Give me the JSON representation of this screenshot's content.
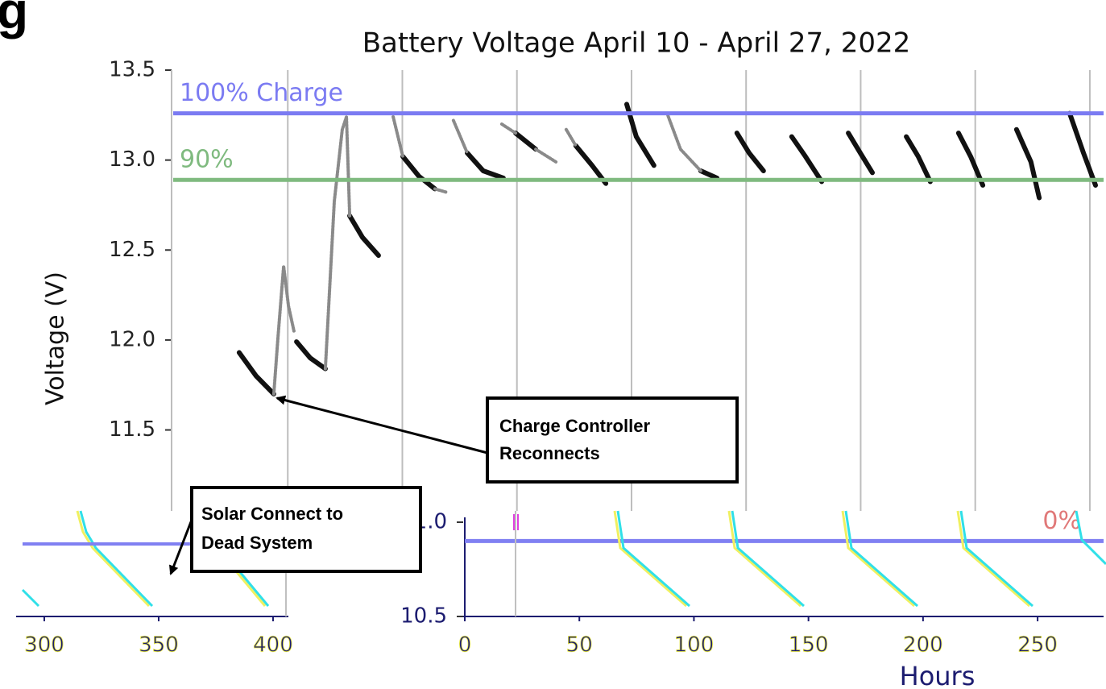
{
  "heading": "g",
  "chart_data": [
    {
      "type": "line",
      "title": "Battery Voltage April 10 - April 27, 2022",
      "ylabel": "Voltage (V)",
      "xlim": [
        0,
        406
      ],
      "xticks": [
        50,
        100,
        150,
        200,
        250,
        300,
        350,
        400
      ],
      "xtick_labels": false,
      "ylim": [
        11.05,
        13.5
      ],
      "yticks": [
        11.5,
        {
          "value": 12,
          "label": "12.0"
        },
        12.5,
        {
          "value": 13,
          "label": "13.0"
        },
        13.5
      ],
      "grid": true,
      "reference_lines": [
        {
          "label": "100% Charge",
          "value": 13.26,
          "color": "#7b7bf2"
        },
        {
          "label": "90%",
          "value": 12.89,
          "color": "#7fba7f"
        }
      ],
      "series": [
        {
          "color": "#111111",
          "x": [
            28.8,
            36.2,
            43.9,
            null,
            53.8,
            59.8,
            66.4,
            null,
            77.0,
            82.6,
            89.6,
            null,
            100.2,
            107.2,
            114.2,
            null,
            128.3,
            135.3,
            144.1,
            null,
            149.4,
            158.2,
            null,
            175.7,
            182.8,
            188.8,
            null,
            197.9,
            202.1,
            209.8,
            null,
            230.2,
            237.3,
            null,
            246.0,
            251.3,
            257.6,
            null,
            269.9,
            275.9,
            283.0,
            null,
            294.6,
            299.8,
            305.1,
            null,
            319.9,
            325.1,
            330.4,
            null,
            342.7,
            348.0,
            353.3,
            null,
            368.0,
            374.3,
            377.9,
            null,
            391.2,
            397.2,
            402.5
          ],
          "values": [
            11.93,
            11.8,
            11.7,
            null,
            11.99,
            11.9,
            11.84,
            null,
            12.69,
            12.57,
            12.47,
            null,
            13.02,
            12.91,
            12.84,
            null,
            13.04,
            12.94,
            12.9,
            null,
            13.15,
            13.06,
            null,
            13.08,
            12.97,
            12.87,
            null,
            13.31,
            13.13,
            12.97,
            null,
            12.94,
            12.9,
            null,
            13.15,
            13.04,
            12.94,
            null,
            13.13,
            13.02,
            12.88,
            null,
            13.15,
            13.04,
            12.93,
            null,
            13.13,
            13.02,
            12.88,
            null,
            13.15,
            13.02,
            12.86,
            null,
            13.17,
            12.99,
            12.79,
            null,
            13.26,
            13.04,
            12.86
          ]
        },
        {
          "color": "#8a8a8a",
          "x": [
            43.9,
            45.7,
            48.2,
            50.3,
            52.7,
            null,
            66.4,
            70.3,
            73.8,
            75.6,
            77.0,
            null,
            96.0,
            100.2,
            null,
            114.2,
            119.5,
            null,
            122.3,
            128.3,
            null,
            143.4,
            149.4,
            null,
            158.2,
            167.0,
            null,
            171.5,
            175.7,
            null,
            215.5,
            221.4,
            230.2
          ],
          "values": [
            11.7,
            12.01,
            12.41,
            12.19,
            12.05,
            null,
            11.84,
            12.77,
            13.17,
            13.24,
            12.69,
            null,
            13.24,
            13.02,
            null,
            12.84,
            12.82,
            null,
            13.22,
            13.04,
            null,
            13.2,
            13.15,
            null,
            13.06,
            12.99,
            null,
            13.17,
            13.08,
            null,
            13.26,
            13.06,
            12.94
          ]
        }
      ]
    },
    {
      "type": "line",
      "xlabel": "Hours",
      "xlim": [
        0,
        278.8
      ],
      "xticks": [
        0,
        50,
        100,
        150,
        200,
        250
      ],
      "ylim": [
        10.5,
        11.06
      ],
      "yticks": [
        10.5,
        {
          "value": 11,
          "label": "11.0"
        }
      ],
      "reference_lines": [
        {
          "label": "0%",
          "value": 10.9,
          "color": "#8080f2",
          "label_color": "#e07878"
        }
      ],
      "series": []
    },
    {
      "type": "line",
      "xlim": [
        290.5,
        406.7
      ],
      "xticks": [
        300,
        350,
        400
      ],
      "series": []
    }
  ],
  "annotations": [
    {
      "lines": [
        "Charge Controller",
        "Reconnects"
      ]
    },
    {
      "lines": [
        "Solar Connect to",
        "Dead System"
      ]
    }
  ]
}
